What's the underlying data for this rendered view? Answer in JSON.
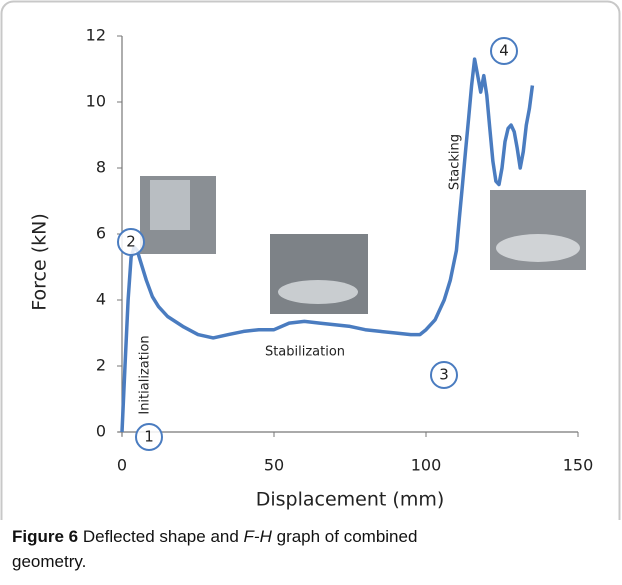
{
  "chart_data": {
    "type": "line",
    "x_label": "Displacement (mm)",
    "y_label": "Force (kN)",
    "xlim": [
      0,
      150
    ],
    "xticks": [
      0,
      50,
      100,
      150
    ],
    "ylim": [
      0,
      12
    ],
    "yticks": [
      0,
      2,
      4,
      6,
      8,
      10,
      12
    ],
    "grid": false,
    "series": [
      {
        "color": "#4a7cc0",
        "x": [
          0,
          1,
          2,
          3,
          4,
          5,
          6,
          8,
          10,
          12,
          15,
          20,
          25,
          30,
          35,
          40,
          45,
          50,
          55,
          60,
          65,
          70,
          75,
          80,
          85,
          90,
          95,
          98,
          100,
          103,
          106,
          108,
          110,
          111,
          112,
          113,
          114,
          115,
          116,
          117,
          118,
          119,
          120,
          121,
          122,
          123,
          124,
          125,
          126,
          127,
          128,
          129,
          130,
          131,
          132,
          133,
          134,
          135
        ],
        "values": [
          0,
          2,
          4,
          5.3,
          5.6,
          5.5,
          5.2,
          4.6,
          4.1,
          3.8,
          3.5,
          3.2,
          2.95,
          2.85,
          2.95,
          3.05,
          3.1,
          3.1,
          3.3,
          3.35,
          3.3,
          3.25,
          3.2,
          3.1,
          3.05,
          3.0,
          2.95,
          2.95,
          3.1,
          3.4,
          4.0,
          4.6,
          5.5,
          6.5,
          7.5,
          8.5,
          9.5,
          10.5,
          11.3,
          10.8,
          10.3,
          10.8,
          10.2,
          9.2,
          8.2,
          7.6,
          7.5,
          8.0,
          8.8,
          9.2,
          9.3,
          9.1,
          8.6,
          8.0,
          8.5,
          9.3,
          9.8,
          10.5
        ]
      }
    ],
    "annotations": [
      "1",
      "2",
      "3",
      "4",
      "Initialization",
      "Stabilization",
      "Stacking"
    ]
  },
  "caption": {
    "label": "Figure 6",
    "text_before": "Deflected shape and",
    "italic": "F-H",
    "text_after": "graph of combined geometry."
  }
}
